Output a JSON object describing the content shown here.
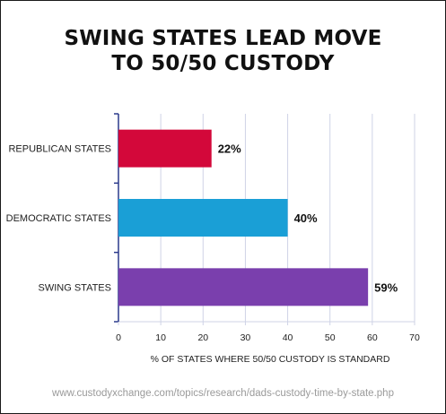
{
  "source_url": "www.custodyxchange.com/topics/research/dads-custody-time-by-state.php",
  "chart_data": {
    "type": "bar",
    "orientation": "horizontal",
    "title_lines": [
      "SWING STATES LEAD MOVE",
      "TO 50/50 CUSTODY"
    ],
    "categories": [
      "REPUBLICAN STATES",
      "DEMOCRATIC STATES",
      "SWING STATES"
    ],
    "values": [
      22,
      40,
      59
    ],
    "value_labels": [
      "22%",
      "40%",
      "59%"
    ],
    "colors": [
      "#d3083a",
      "#1a9fd6",
      "#7a3fad"
    ],
    "xlabel": "% OF STATES WHERE 50/50 CUSTODY IS STANDARD",
    "ylabel": "",
    "xlim": [
      0,
      70
    ],
    "xticks": [
      0,
      10,
      20,
      30,
      40,
      50,
      60,
      70
    ],
    "grid": "vertical",
    "axis_color": "#2b3a8c",
    "grid_color": "#cfd3e6"
  }
}
